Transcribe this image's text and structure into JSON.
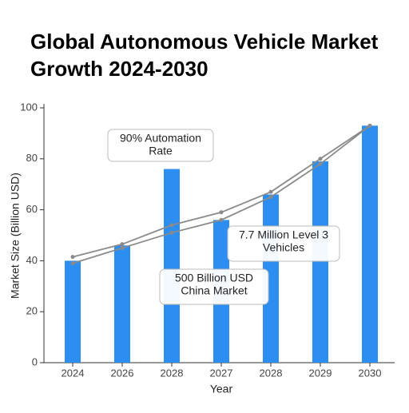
{
  "chart_data": {
    "type": "bar",
    "title_lines": [
      "Global Autonomous Vehicle Market",
      "Growth 2024-2030"
    ],
    "xlabel": "Year",
    "ylabel": "Market Size (Billion USD)",
    "categories": [
      "2024",
      "2026",
      "2028",
      "2027",
      "2028",
      "2029",
      "2030"
    ],
    "values": [
      40,
      46,
      76,
      56,
      66,
      79,
      93
    ],
    "color": "#2b8ef0",
    "lines": [
      {
        "color": "#8a8a8a",
        "values": [
          41.5,
          46.5,
          54,
          59,
          67,
          80,
          93
        ]
      },
      {
        "color": "#8a8a8a",
        "values": [
          39,
          45,
          51,
          56,
          65,
          78,
          93
        ]
      }
    ],
    "ylim": [
      0,
      100
    ],
    "yticks": [
      0,
      20,
      40,
      60,
      80,
      100
    ],
    "annotations": [
      {
        "lines": [
          "90% Automation",
          "Rate"
        ]
      },
      {
        "lines": [
          "7.7 Million Level 3",
          "Vehicles"
        ]
      },
      {
        "lines": [
          "500 Billion USD",
          "China Market"
        ]
      }
    ]
  }
}
